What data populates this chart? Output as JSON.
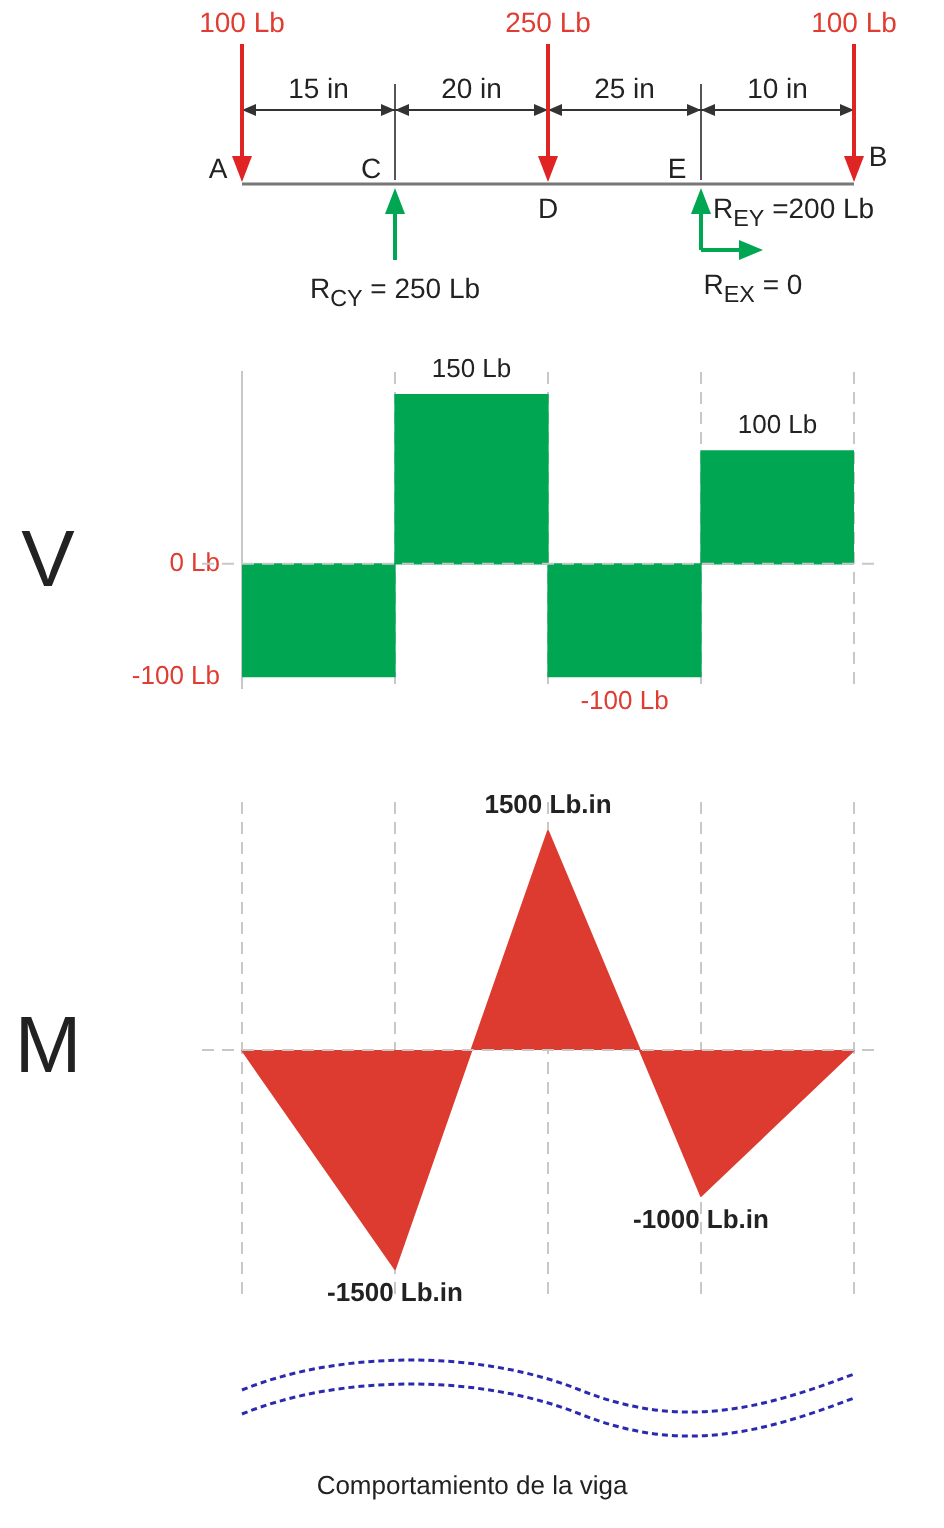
{
  "chart_data": [
    {
      "type": "other",
      "annotations": [
        "100 Lb",
        "250 Lb",
        "100 Lb",
        "15 in",
        "20 in",
        "25 in",
        "10 in",
        "A",
        "C",
        "D",
        "E",
        "B",
        "R$_{CY}$ = 250 Lb",
        "R$_{EY}$ =200 Lb",
        "R$_{EX}$ = 0"
      ]
    },
    {
      "type": "bar",
      "ylabel": "V",
      "categories": [
        null,
        null,
        null,
        null
      ],
      "values": [
        -100,
        150,
        -100,
        100
      ],
      "value_labels": [
        null,
        "150 Lb",
        "-100 Lb",
        "100 Lb"
      ],
      "color": "#00a651",
      "ylim": [
        -110,
        170
      ],
      "yticks": [
        {
          "value": -100,
          "label": "-100 Lb"
        },
        {
          "value": 0,
          "label": "0 Lb"
        }
      ],
      "grid": "x",
      "tick_labels": "y",
      "ref_lines": [
        {
          "axis": "y",
          "value": 0,
          "line_style": "dashed",
          "color": "#c8c8c8"
        }
      ]
    },
    {
      "type": "area",
      "ylabel": "M",
      "categories": [
        null,
        null,
        null,
        null,
        null
      ],
      "values": [
        0,
        -1500,
        1500,
        -1000,
        0
      ],
      "value_labels": [
        null,
        "-1500 Lb.in",
        "1500 Lb.in",
        "-1000 Lb.in",
        null
      ],
      "color": "#dd3b30",
      "ylim": [
        -1700,
        1700
      ],
      "grid": "x",
      "tick_labels": false,
      "ref_lines": [
        {
          "axis": "y",
          "value": 0,
          "line_style": "dashed",
          "color": "#c8c8c8"
        }
      ],
      "annotations": [
        "Comportamiento de la viga"
      ]
    }
  ]
}
